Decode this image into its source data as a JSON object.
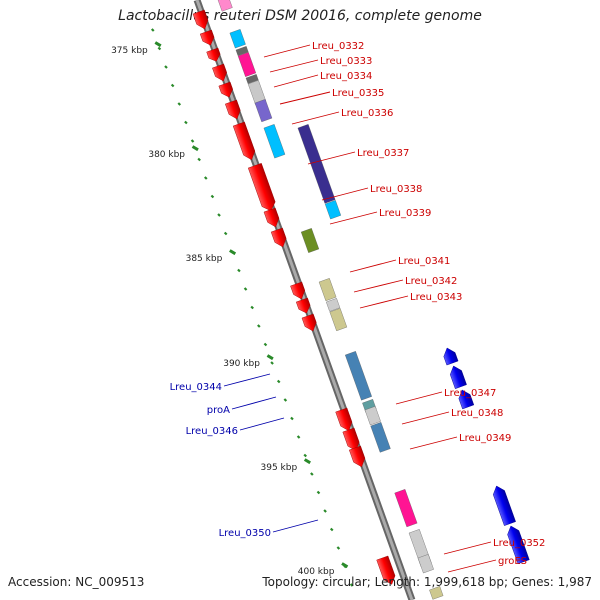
{
  "title": "Lactobacillus reuteri DSM 20016, complete genome",
  "accession_label": "Accession: NC_009513",
  "summary_label": "Topology: circular; Length: 1,999,618 bp; Genes: 1,987",
  "kbp_ticks": [
    "375 kbp",
    "380 kbp",
    "385 kbp",
    "390 kbp",
    "395 kbp",
    "400 kbp"
  ],
  "forward_genes": [
    "Lreu_0332",
    "Lreu_0333",
    "Lreu_0334",
    "Lreu_0335",
    "Lreu_0336",
    "Lreu_0337",
    "Lreu_0338",
    "Lreu_0339",
    "Lreu_0341",
    "Lreu_0342",
    "Lreu_0343",
    "Lreu_0347",
    "Lreu_0348",
    "Lreu_0349",
    "Lreu_0352",
    "groES"
  ],
  "reverse_genes": [
    "Lreu_0344",
    "proA",
    "Lreu_0346",
    "Lreu_0350"
  ],
  "colors": {
    "forward_label": "#cc0000",
    "reverse_label": "#0000aa",
    "forward_gene": "#ff0000",
    "reverse_gene": "#0000ee",
    "backbone": "#888888",
    "tick": "#2a8a2a"
  }
}
